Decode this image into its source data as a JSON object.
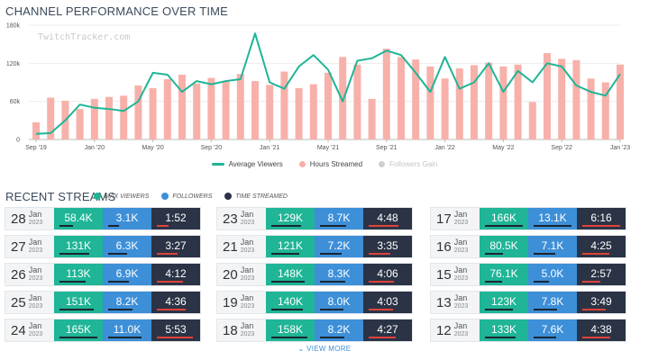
{
  "header": {
    "chart_title": "CHANNEL PERFORMANCE OVER TIME"
  },
  "watermark": "TwitchTracker.com",
  "legend": {
    "avg_viewers": "Average Viewers",
    "hours_streamed": "Hours Streamed",
    "followers_gain": "Followers Gain"
  },
  "colors": {
    "line": "#1fb596",
    "bars": "#f7b1aa",
    "followers_gain": "#cfcfcf",
    "max_viewers": "#1fb596",
    "followers": "#3d8fd8",
    "time_streamed": "#2b3446"
  },
  "chart_data": {
    "type": "bar",
    "title": "CHANNEL PERFORMANCE OVER TIME",
    "x_ticks": [
      "Sep '19",
      "Jan '20",
      "May '20",
      "Sep '20",
      "Jan '21",
      "May '21",
      "Sep '21",
      "Jan '22",
      "May '22",
      "Sep '22",
      "Jan '23"
    ],
    "y_ticks": [
      "0",
      "60k",
      "120k",
      "180k"
    ],
    "ylim": [
      0,
      180000
    ],
    "grid": true,
    "months": [
      "2019-09",
      "2019-10",
      "2019-11",
      "2019-12",
      "2020-01",
      "2020-02",
      "2020-03",
      "2020-04",
      "2020-05",
      "2020-06",
      "2020-07",
      "2020-08",
      "2020-09",
      "2020-10",
      "2020-11",
      "2020-12",
      "2021-01",
      "2021-02",
      "2021-03",
      "2021-04",
      "2021-05",
      "2021-06",
      "2021-07",
      "2021-08",
      "2021-09",
      "2021-10",
      "2021-11",
      "2021-12",
      "2022-01",
      "2022-02",
      "2022-03",
      "2022-04",
      "2022-05",
      "2022-06",
      "2022-07",
      "2022-08",
      "2022-09",
      "2022-10",
      "2022-11",
      "2022-12",
      "2023-01"
    ],
    "series": [
      {
        "name": "Hours Streamed",
        "kind": "bar",
        "values": [
          27000,
          66000,
          61000,
          48000,
          64000,
          67000,
          69000,
          85000,
          81000,
          95000,
          102000,
          88000,
          97000,
          92000,
          103000,
          92000,
          86000,
          107000,
          81000,
          87000,
          105000,
          130000,
          118000,
          64000,
          143000,
          130000,
          126000,
          115000,
          96000,
          112000,
          117000,
          121000,
          115000,
          118000,
          59000,
          136000,
          127000,
          125000,
          96000,
          90000,
          118000
        ],
        "note": "Bar heights read against the left 0–180k axis; the hours-streamed scale itself has no printed axis."
      },
      {
        "name": "Average Viewers",
        "kind": "line",
        "values": [
          9000,
          10000,
          30000,
          55000,
          50000,
          48000,
          45000,
          60000,
          105000,
          102000,
          75000,
          92000,
          87000,
          92000,
          95000,
          167000,
          90000,
          80000,
          115000,
          133000,
          110000,
          60000,
          124000,
          128000,
          140000,
          133000,
          105000,
          75000,
          130000,
          80000,
          90000,
          120000,
          75000,
          108000,
          90000,
          120000,
          115000,
          85000,
          75000,
          69000,
          103000
        ]
      }
    ]
  },
  "streams": {
    "title": "RECENT STREAMS",
    "legend": {
      "max_viewers": "MAX VIEWERS",
      "followers": "FOLLOWERS",
      "time_streamed": "TIME STREAMED"
    },
    "columns": [
      [
        {
          "day": "28",
          "month": "Jan",
          "year": "2023",
          "viewers": "58.4K",
          "followers": "3.1K",
          "time": "1:52",
          "viewers_bar": 0.35,
          "followers_bar": 0.28,
          "time_bar": 0.3
        },
        {
          "day": "27",
          "month": "Jan",
          "year": "2023",
          "viewers": "131K",
          "followers": "6.3K",
          "time": "3:27",
          "viewers_bar": 0.79,
          "followers_bar": 0.5,
          "time_bar": 0.55
        },
        {
          "day": "26",
          "month": "Jan",
          "year": "2023",
          "viewers": "113K",
          "followers": "6.9K",
          "time": "4:12",
          "viewers_bar": 0.68,
          "followers_bar": 0.55,
          "time_bar": 0.68
        },
        {
          "day": "25",
          "month": "Jan",
          "year": "2023",
          "viewers": "151K",
          "followers": "8.2K",
          "time": "4:36",
          "viewers_bar": 0.9,
          "followers_bar": 0.65,
          "time_bar": 0.75
        },
        {
          "day": "24",
          "month": "Jan",
          "year": "2023",
          "viewers": "165K",
          "followers": "11.0K",
          "time": "5:53",
          "viewers_bar": 0.99,
          "followers_bar": 0.87,
          "time_bar": 0.95
        }
      ],
      [
        {
          "day": "23",
          "month": "Jan",
          "year": "2023",
          "viewers": "129K",
          "followers": "8.7K",
          "time": "4:48",
          "viewers_bar": 0.78,
          "followers_bar": 0.69,
          "time_bar": 0.78
        },
        {
          "day": "21",
          "month": "Jan",
          "year": "2023",
          "viewers": "121K",
          "followers": "7.2K",
          "time": "3:35",
          "viewers_bar": 0.73,
          "followers_bar": 0.57,
          "time_bar": 0.58
        },
        {
          "day": "20",
          "month": "Jan",
          "year": "2023",
          "viewers": "148K",
          "followers": "8.3K",
          "time": "4:06",
          "viewers_bar": 0.89,
          "followers_bar": 0.66,
          "time_bar": 0.66
        },
        {
          "day": "19",
          "month": "Jan",
          "year": "2023",
          "viewers": "140K",
          "followers": "8.0K",
          "time": "4:03",
          "viewers_bar": 0.84,
          "followers_bar": 0.63,
          "time_bar": 0.65
        },
        {
          "day": "18",
          "month": "Jan",
          "year": "2023",
          "viewers": "158K",
          "followers": "8.2K",
          "time": "4:27",
          "viewers_bar": 0.95,
          "followers_bar": 0.65,
          "time_bar": 0.72
        }
      ],
      [
        {
          "day": "17",
          "month": "Jan",
          "year": "2023",
          "viewers": "166K",
          "followers": "13.1K",
          "time": "6:16",
          "viewers_bar": 1.0,
          "followers_bar": 1.0,
          "time_bar": 1.0
        },
        {
          "day": "16",
          "month": "Jan",
          "year": "2023",
          "viewers": "80.5K",
          "followers": "7.1K",
          "time": "4:25",
          "viewers_bar": 0.48,
          "followers_bar": 0.56,
          "time_bar": 0.71
        },
        {
          "day": "15",
          "month": "Jan",
          "year": "2023",
          "viewers": "76.1K",
          "followers": "5.0K",
          "time": "2:57",
          "viewers_bar": 0.46,
          "followers_bar": 0.4,
          "time_bar": 0.47
        },
        {
          "day": "13",
          "month": "Jan",
          "year": "2023",
          "viewers": "123K",
          "followers": "7.8K",
          "time": "3:49",
          "viewers_bar": 0.74,
          "followers_bar": 0.62,
          "time_bar": 0.61
        },
        {
          "day": "12",
          "month": "Jan",
          "year": "2023",
          "viewers": "133K",
          "followers": "7.6K",
          "time": "4:38",
          "viewers_bar": 0.8,
          "followers_bar": 0.6,
          "time_bar": 0.74
        }
      ]
    ]
  },
  "view_more": "⌄ VIEW MORE"
}
